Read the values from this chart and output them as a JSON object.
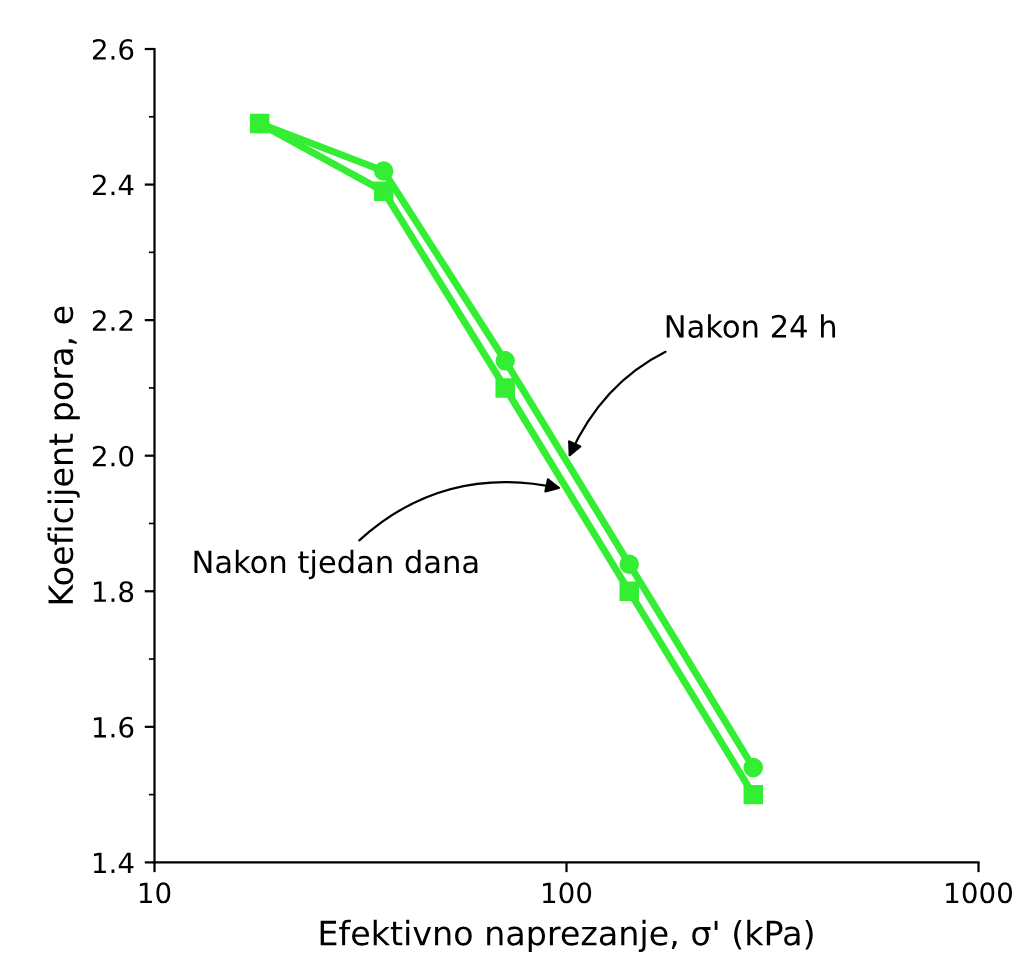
{
  "chart_data": {
    "type": "line",
    "xlabel": "Efektivno naprezanje, σ' (kPa)",
    "ylabel": "Koeficijent pora, e",
    "log": "x",
    "xlim": [
      10,
      1000
    ],
    "xticks": [
      10,
      100,
      1000
    ],
    "ylim": [
      1.4,
      2.6
    ],
    "yticks": [
      1.4,
      1.6,
      1.8,
      {
        "value": 2,
        "label": "2.0"
      },
      2.2,
      2.4,
      2.6
    ],
    "grid": false,
    "legend": false,
    "x": [
      18,
      36,
      71,
      142,
      284
    ],
    "series": [
      {
        "color": "#33ee33",
        "marker": "circle",
        "values": [
          2.49,
          2.42,
          2.14,
          1.84,
          1.54
        ]
      },
      {
        "color": "#33ee33",
        "marker": "square",
        "values": [
          2.49,
          2.39,
          2.1,
          1.8,
          1.5
        ]
      }
    ],
    "annotations": [
      {
        "text": "Nakon 24 h",
        "x": 100,
        "y": 1.99
      },
      {
        "text": "Nakon tjedan dana",
        "x": 100,
        "y": 1.95
      }
    ]
  }
}
